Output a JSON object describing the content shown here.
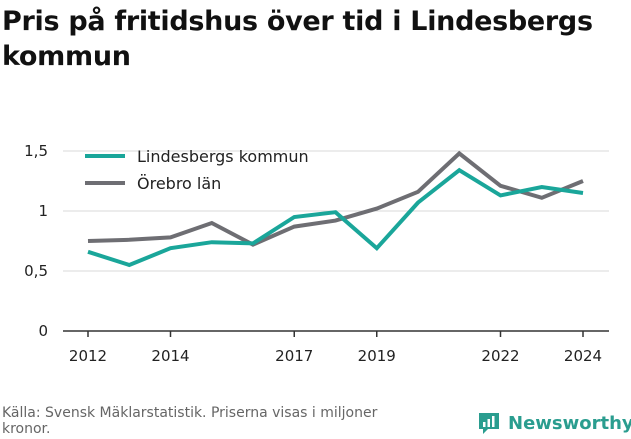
{
  "title": "Pris på fritidshus över tid i Lindesbergs kommun",
  "source": "Källa: Svensk Mäklarstatistik. Priserna visas i miljoner kronor.",
  "brand": "Newsworthy",
  "colors": {
    "lindesberg": "#1aa69a",
    "orebro": "#6e6e73",
    "axis": "#333333",
    "grid": "#d9d9d9",
    "brand": "#2a9d8f"
  },
  "chart_data": {
    "type": "line",
    "x": [
      2012,
      2013,
      2014,
      2015,
      2016,
      2017,
      2018,
      2019,
      2020,
      2021,
      2022,
      2023,
      2024
    ],
    "series": [
      {
        "name": "Lindesbergs kommun",
        "values": [
          0.66,
          0.55,
          0.69,
          0.74,
          0.73,
          0.95,
          0.99,
          0.69,
          1.07,
          1.34,
          1.13,
          1.2,
          1.15
        ]
      },
      {
        "name": "Örebro län",
        "values": [
          0.75,
          0.76,
          0.78,
          0.9,
          0.72,
          0.87,
          0.92,
          1.02,
          1.16,
          1.48,
          1.21,
          1.11,
          1.25
        ]
      }
    ],
    "x_ticks": [
      2012,
      2014,
      2017,
      2019,
      2022,
      2024
    ],
    "x_tick_labels": [
      "2012",
      "2014",
      "2017",
      "2019",
      "2022",
      "2024"
    ],
    "y_ticks": [
      0,
      0.5,
      1,
      1.5
    ],
    "y_tick_labels": [
      "0",
      "0,5",
      "1",
      "1,5"
    ],
    "ylim": [
      0,
      1.5
    ],
    "xlim": [
      2012,
      2024
    ],
    "grid": true,
    "legend_position": "top-left",
    "xlabel": "",
    "ylabel": ""
  }
}
